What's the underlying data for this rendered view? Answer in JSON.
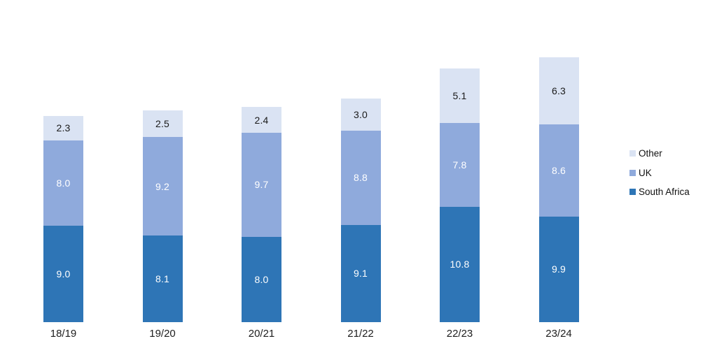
{
  "chart_data": {
    "type": "bar",
    "stacked": true,
    "orientation": "vertical",
    "title": "",
    "xlabel": "",
    "ylabel": "",
    "grid": false,
    "y_axis_visible": false,
    "x_axis_line_visible": false,
    "background_color": "#ffffff",
    "categories": [
      "18/19",
      "19/20",
      "20/21",
      "21/22",
      "22/23",
      "23/24"
    ],
    "series": [
      {
        "name": "South Africa",
        "color": "#2E75B6",
        "label_color": "#ffffff",
        "values": [
          9.0,
          8.1,
          8.0,
          9.1,
          10.8,
          9.9
        ]
      },
      {
        "name": "UK",
        "color": "#8FAADC",
        "label_color": "#ffffff",
        "values": [
          8.0,
          9.2,
          9.7,
          8.8,
          7.8,
          8.6
        ]
      },
      {
        "name": "Other",
        "color": "#DAE3F3",
        "label_color": "#1a1a1a",
        "values": [
          2.3,
          2.5,
          2.4,
          3.0,
          5.1,
          6.3
        ]
      }
    ],
    "data_labels": [
      [
        "9.0",
        "8.1",
        "8.0",
        "9.1",
        "10.8",
        "9.9"
      ],
      [
        "8.0",
        "9.2",
        "9.7",
        "8.8",
        "7.8",
        "8.6"
      ],
      [
        "2.3",
        "2.5",
        "2.4",
        "3.0",
        "5.1",
        "6.3"
      ]
    ],
    "totals": [
      19.3,
      19.8,
      20.1,
      20.9,
      23.7,
      24.8
    ],
    "legend": {
      "position": "right",
      "entries": [
        {
          "label": "Other",
          "color": "#DAE3F3"
        },
        {
          "label": "UK",
          "color": "#8FAADC"
        },
        {
          "label": "South Africa",
          "color": "#2E75B6"
        }
      ]
    }
  }
}
